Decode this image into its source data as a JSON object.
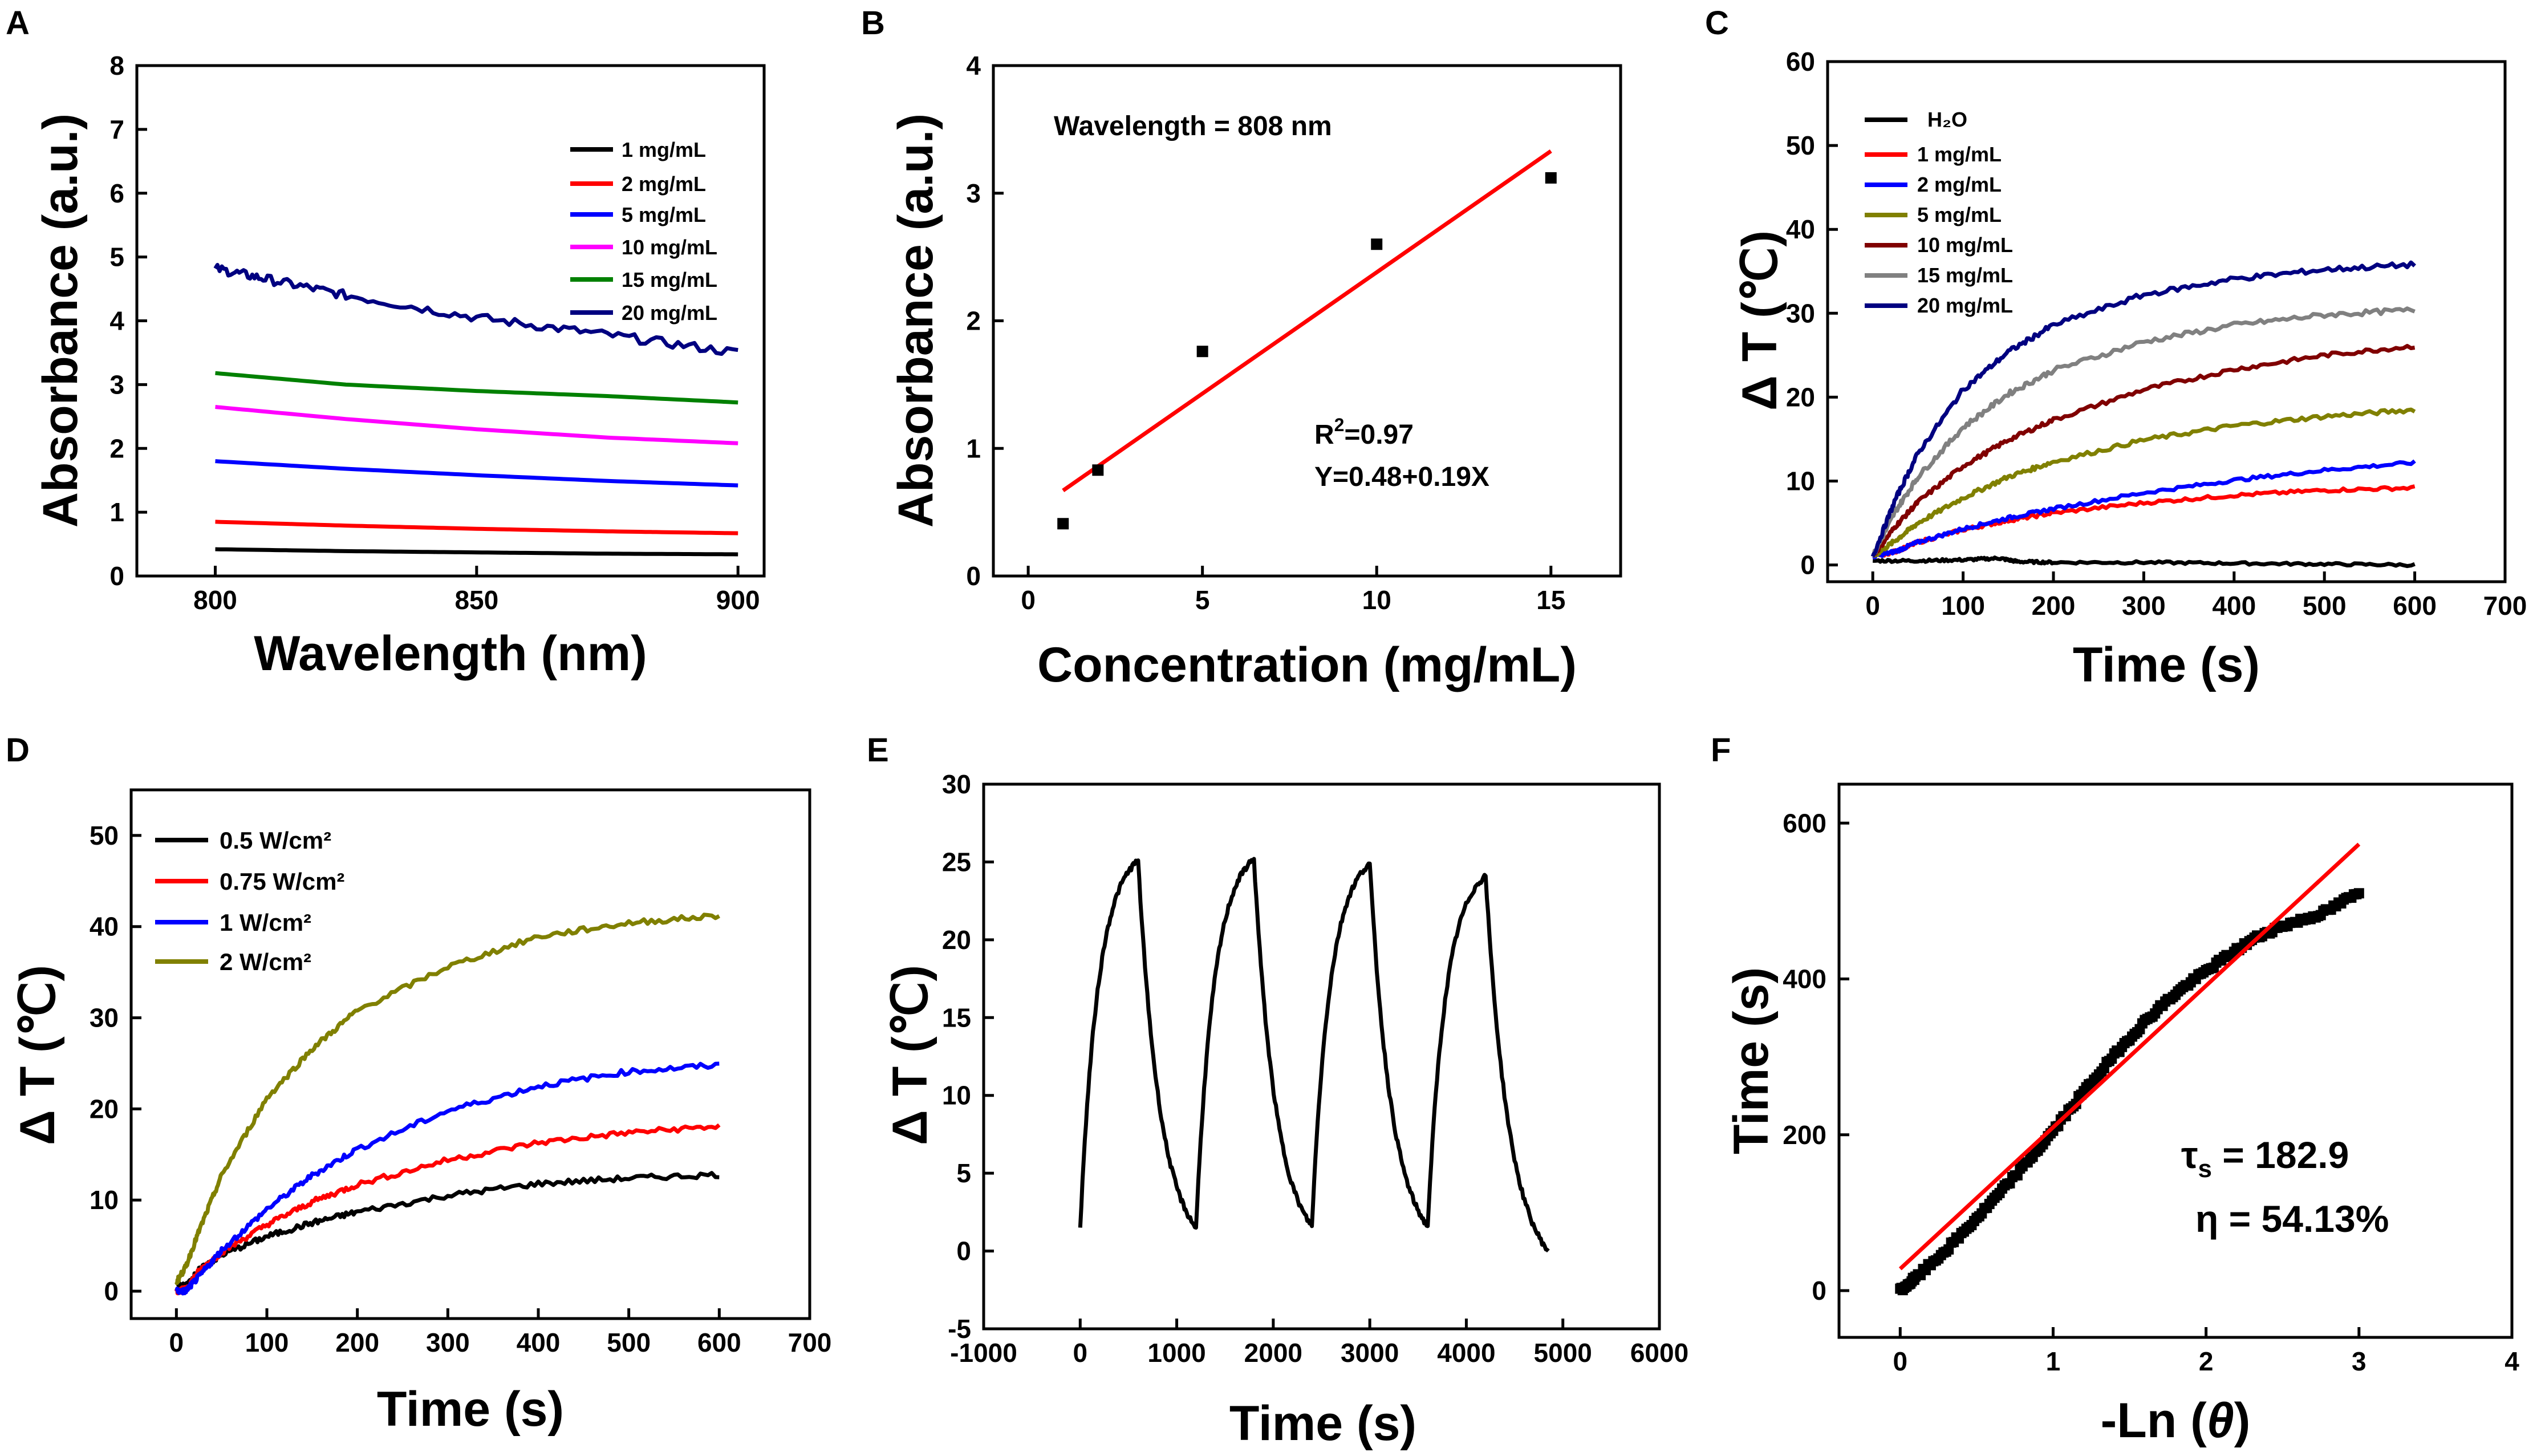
{
  "figure": {
    "panels": [
      "A",
      "B",
      "C",
      "D",
      "E",
      "F"
    ]
  },
  "chart_data": [
    {
      "panel": "A",
      "type": "line",
      "xlabel": "Wavelength (nm)",
      "ylabel": "Absorbance (a.u.)",
      "xlim": [
        785,
        905
      ],
      "ylim": [
        0,
        8
      ],
      "xticks": [
        800,
        850,
        900
      ],
      "yticks": [
        0,
        1,
        2,
        3,
        4,
        5,
        6,
        7,
        8
      ],
      "legend": "top-right",
      "noise": [
        0,
        0,
        0,
        0,
        0,
        0.07
      ],
      "series": [
        {
          "name": "1  mg/mL",
          "color": "#000000",
          "x": [
            800,
            825,
            850,
            875,
            900
          ],
          "y": [
            0.42,
            0.39,
            0.37,
            0.35,
            0.34
          ]
        },
        {
          "name": "2  mg/mL",
          "color": "#ff0000",
          "x": [
            800,
            825,
            850,
            875,
            900
          ],
          "y": [
            0.85,
            0.79,
            0.74,
            0.7,
            0.67
          ]
        },
        {
          "name": "5  mg/mL",
          "color": "#0000ff",
          "x": [
            800,
            825,
            850,
            875,
            900
          ],
          "y": [
            1.8,
            1.68,
            1.58,
            1.49,
            1.42
          ]
        },
        {
          "name": "10 mg/mL",
          "color": "#ff00ff",
          "x": [
            800,
            825,
            850,
            875,
            900
          ],
          "y": [
            2.65,
            2.46,
            2.3,
            2.17,
            2.08
          ]
        },
        {
          "name": "15 mg/mL",
          "color": "#008000",
          "x": [
            800,
            825,
            850,
            875,
            900
          ],
          "y": [
            3.18,
            3.0,
            2.9,
            2.82,
            2.72
          ]
        },
        {
          "name": "20 mg/mL",
          "color": "#000080",
          "x": [
            800,
            810,
            825,
            850,
            875,
            900
          ],
          "y": [
            4.82,
            4.65,
            4.4,
            4.05,
            3.78,
            3.5
          ]
        }
      ]
    },
    {
      "panel": "B",
      "type": "scatter",
      "xlabel": "Concentration (mg/mL)",
      "ylabel": "Absorbance (a.u.)",
      "xlim": [
        -1,
        17
      ],
      "ylim": [
        0,
        4
      ],
      "xticks": [
        0,
        5,
        10,
        15
      ],
      "yticks": [
        0,
        1,
        2,
        3,
        4
      ],
      "points": {
        "x": [
          1,
          2,
          5,
          10,
          15
        ],
        "y": [
          0.41,
          0.83,
          1.76,
          2.6,
          3.12
        ]
      },
      "fit": {
        "x": [
          1,
          15
        ],
        "y": [
          0.67,
          3.33
        ],
        "color": "#ff0000"
      },
      "annotations": {
        "wavelength": "Wavelength = 808 nm",
        "r2_prefix": "R",
        "r2_exp": "2",
        "r2_value": "=0.97",
        "equation": "Y=0.48+0.19X"
      }
    },
    {
      "panel": "C",
      "type": "line",
      "xlabel": "Time (s)",
      "ylabel": "Δ T (℃)",
      "xlim": [
        -50,
        700
      ],
      "ylim": [
        -2,
        60
      ],
      "xticks": [
        0,
        100,
        200,
        300,
        400,
        500,
        600,
        700
      ],
      "yticks": [
        0,
        10,
        20,
        30,
        40,
        50,
        60
      ],
      "legend": "top-left",
      "noise": [
        0.15,
        0.2,
        0.2,
        0.25,
        0.25,
        0.3,
        0.3
      ],
      "series": [
        {
          "name": "H₂O",
          "color": "#000000",
          "x": [
            0,
            50,
            100,
            140,
            160,
            200,
            300,
            400,
            500,
            600
          ],
          "y": [
            0.5,
            0.5,
            0.6,
            0.8,
            0.4,
            0.3,
            0.3,
            0.2,
            0.1,
            0.0
          ]
        },
        {
          "name": "1  mg/mL",
          "color": "#ff0000",
          "x": [
            0,
            25,
            50,
            100,
            150,
            200,
            300,
            400,
            500,
            600
          ],
          "y": [
            1.0,
            1.6,
            2.7,
            4.2,
            5.3,
            6.2,
            7.4,
            8.3,
            8.9,
            9.2
          ]
        },
        {
          "name": "2  mg/mL",
          "color": "#0000ff",
          "x": [
            0,
            25,
            50,
            100,
            150,
            200,
            300,
            400,
            500,
            600
          ],
          "y": [
            1.0,
            1.6,
            2.7,
            4.3,
            5.6,
            6.7,
            8.6,
            10.1,
            11.3,
            12.2
          ]
        },
        {
          "name": "5  mg/mL",
          "color": "#808000",
          "x": [
            0,
            25,
            50,
            100,
            150,
            200,
            300,
            400,
            500,
            600
          ],
          "y": [
            1.0,
            2.9,
            5.0,
            8.0,
            10.5,
            12.3,
            14.9,
            16.6,
            17.7,
            18.5
          ]
        },
        {
          "name": "10 mg/mL",
          "color": "#800000",
          "x": [
            0,
            25,
            50,
            100,
            150,
            200,
            300,
            400,
            500,
            600
          ],
          "y": [
            1.0,
            4.6,
            7.5,
            11.8,
            14.9,
            17.3,
            20.9,
            23.3,
            25.0,
            26.1
          ]
        },
        {
          "name": "15 mg/mL",
          "color": "#808080",
          "x": [
            0,
            25,
            50,
            100,
            150,
            200,
            300,
            400,
            500,
            600
          ],
          "y": [
            1.0,
            6.4,
            10.5,
            16.4,
            20.4,
            23.2,
            26.6,
            28.6,
            29.8,
            30.4
          ]
        },
        {
          "name": "20 mg/mL",
          "color": "#000080",
          "x": [
            0,
            25,
            50,
            100,
            150,
            200,
            300,
            400,
            500,
            600
          ],
          "y": [
            1.0,
            7.8,
            13.3,
            20.9,
            25.4,
            28.6,
            32.2,
            34.1,
            35.2,
            35.8
          ]
        }
      ]
    },
    {
      "panel": "D",
      "type": "line",
      "xlabel": "Time (s)",
      "ylabel": "Δ T (℃)",
      "xlim": [
        -50,
        700
      ],
      "ylim": [
        -3,
        55
      ],
      "xticks": [
        0,
        100,
        200,
        300,
        400,
        500,
        600,
        700
      ],
      "yticks": [
        0,
        10,
        20,
        30,
        40,
        50
      ],
      "legend": "top-left",
      "noise": [
        0.3,
        0.3,
        0.3,
        0.3
      ],
      "series": [
        {
          "name": "0.5  W/cm²",
          "color": "#000000",
          "x": [
            0,
            10,
            25,
            50,
            100,
            150,
            200,
            300,
            400,
            500,
            600
          ],
          "y": [
            0.8,
            0.5,
            2.3,
            4.0,
            6.0,
            7.5,
            8.7,
            10.5,
            11.8,
            12.4,
            12.8
          ]
        },
        {
          "name": "0.75 W/cm²",
          "color": "#ff0000",
          "x": [
            0,
            10,
            25,
            50,
            100,
            150,
            200,
            300,
            400,
            500,
            600
          ],
          "y": [
            0.0,
            0.2,
            2.2,
            4.3,
            7.3,
            9.8,
            11.7,
            14.4,
            16.3,
            17.4,
            18.1
          ]
        },
        {
          "name": "1    W/cm²",
          "color": "#0000ff",
          "x": [
            0,
            10,
            25,
            50,
            100,
            150,
            200,
            300,
            400,
            500,
            600
          ],
          "y": [
            0.0,
            0.0,
            1.6,
            4.5,
            9.0,
            12.7,
            15.6,
            19.8,
            22.5,
            24.1,
            24.8
          ]
        },
        {
          "name": "2    W/cm²",
          "color": "#808000",
          "x": [
            0,
            10,
            25,
            50,
            100,
            150,
            200,
            300,
            400,
            500,
            600
          ],
          "y": [
            1.0,
            2.6,
            6.6,
            12.7,
            21.2,
            26.6,
            30.8,
            35.6,
            38.9,
            40.4,
            41.2
          ]
        }
      ]
    },
    {
      "panel": "E",
      "type": "line",
      "xlabel": "Time (s)",
      "ylabel": "Δ T (℃)",
      "xlim": [
        -1000,
        6000
      ],
      "ylim": [
        -5,
        30
      ],
      "xticks": [
        -1000,
        0,
        1000,
        2000,
        3000,
        4000,
        5000,
        6000
      ],
      "yticks": [
        -5,
        0,
        5,
        10,
        15,
        20,
        25,
        30
      ],
      "cycles": [
        {
          "start": 0,
          "peak_time": 600,
          "end": 1200,
          "base": 1.5,
          "peak": 25.1,
          "end_value": 1.5
        },
        {
          "start": 1200,
          "peak_time": 1800,
          "end": 2400,
          "base": 1.5,
          "peak": 25.2,
          "end_value": 1.6
        },
        {
          "start": 2400,
          "peak_time": 3000,
          "end": 3600,
          "base": 1.6,
          "peak": 24.9,
          "end_value": 1.6
        },
        {
          "start": 3600,
          "peak_time": 4200,
          "end": 4850,
          "base": 1.6,
          "peak": 24.1,
          "end_value": 0.0
        }
      ],
      "color": "#000000"
    },
    {
      "panel": "F",
      "type": "scatter",
      "xlabel_prefix": "-Ln (",
      "xlabel_symbol": "θ",
      "xlabel_suffix": ")",
      "ylabel": "Time (s)",
      "xlim": [
        -0.4,
        4
      ],
      "ylim": [
        -60,
        650
      ],
      "xticks": [
        0,
        1,
        2,
        3,
        4
      ],
      "yticks": [
        0,
        200,
        400,
        600
      ],
      "points": {
        "x": [
          0.0,
          0.05,
          0.1,
          0.2,
          0.3,
          0.4,
          0.5,
          0.6,
          0.7,
          0.8,
          0.9,
          1.0,
          1.1,
          1.2,
          1.3,
          1.4,
          1.5,
          1.6,
          1.7,
          1.8,
          1.9,
          2.0,
          2.1,
          2.2,
          2.3,
          2.4,
          2.5,
          2.6,
          2.7,
          2.8,
          2.9,
          3.0
        ],
        "y": [
          0,
          8,
          16,
          34,
          52,
          72,
          93,
          114,
          136,
          158,
          181,
          205,
          230,
          255,
          279,
          302,
          324,
          345,
          364,
          381,
          396,
          410,
          424,
          437,
          450,
          460,
          468,
          474,
          480,
          488,
          500,
          510
        ]
      },
      "fit": {
        "x": [
          0,
          3.0
        ],
        "y": [
          28,
          573
        ],
        "color": "#ff0000"
      },
      "annotations": {
        "tau_symbol": "τ",
        "tau_sub": "s",
        "tau_value": " = 182.9",
        "eta": "η = 54.13%"
      }
    }
  ]
}
